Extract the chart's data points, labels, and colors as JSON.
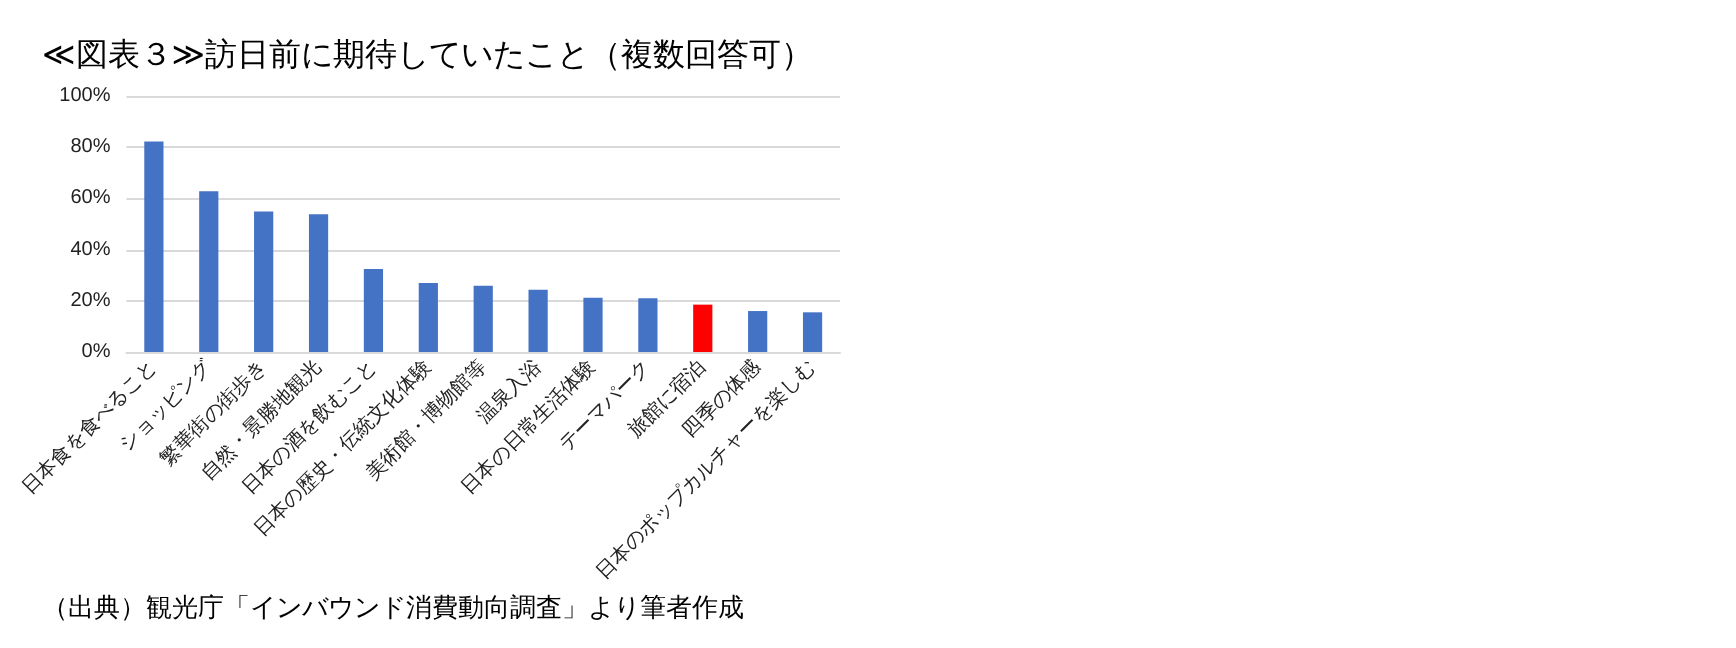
{
  "chart_data": {
    "type": "bar",
    "title": "≪図表３≫訪日前に期待していたこと（複数回答可）",
    "categories": [
      "日本食を食べること",
      "ショッピング",
      "繁華街の街歩き",
      "自然・景勝地観光",
      "日本の酒を飲むこと",
      "日本の歴史・伝統文化体験",
      "美術館・博物館等",
      "温泉入浴",
      "日本の日常生活体験",
      "テーマパーク",
      "旅館に宿泊",
      "四季の体感",
      "日本のポップカルチャーを楽しむ"
    ],
    "values": [
      82.2,
      62.8,
      54.9,
      53.8,
      32.4,
      27,
      25.9,
      24.3,
      21.2,
      21,
      18.5,
      16,
      15.5
    ],
    "colors": [
      "#4472c4",
      "#4472c4",
      "#4472c4",
      "#4472c4",
      "#4472c4",
      "#4472c4",
      "#4472c4",
      "#4472c4",
      "#4472c4",
      "#4472c4",
      "#ff0000",
      "#4472c4",
      "#4472c4"
    ],
    "ylim": [
      0,
      100
    ],
    "yticks": [
      {
        "value": 0,
        "label": "0%"
      },
      {
        "value": 20,
        "label": "20%"
      },
      {
        "value": 40,
        "label": "40%"
      },
      {
        "value": 60,
        "label": "60%"
      },
      {
        "value": 80,
        "label": "80%"
      },
      {
        "value": 100,
        "label": "100%"
      }
    ],
    "grid": "y",
    "annotations": [
      "（出典）観光庁「インバウンド消費動向調査」より筆者作成"
    ]
  }
}
